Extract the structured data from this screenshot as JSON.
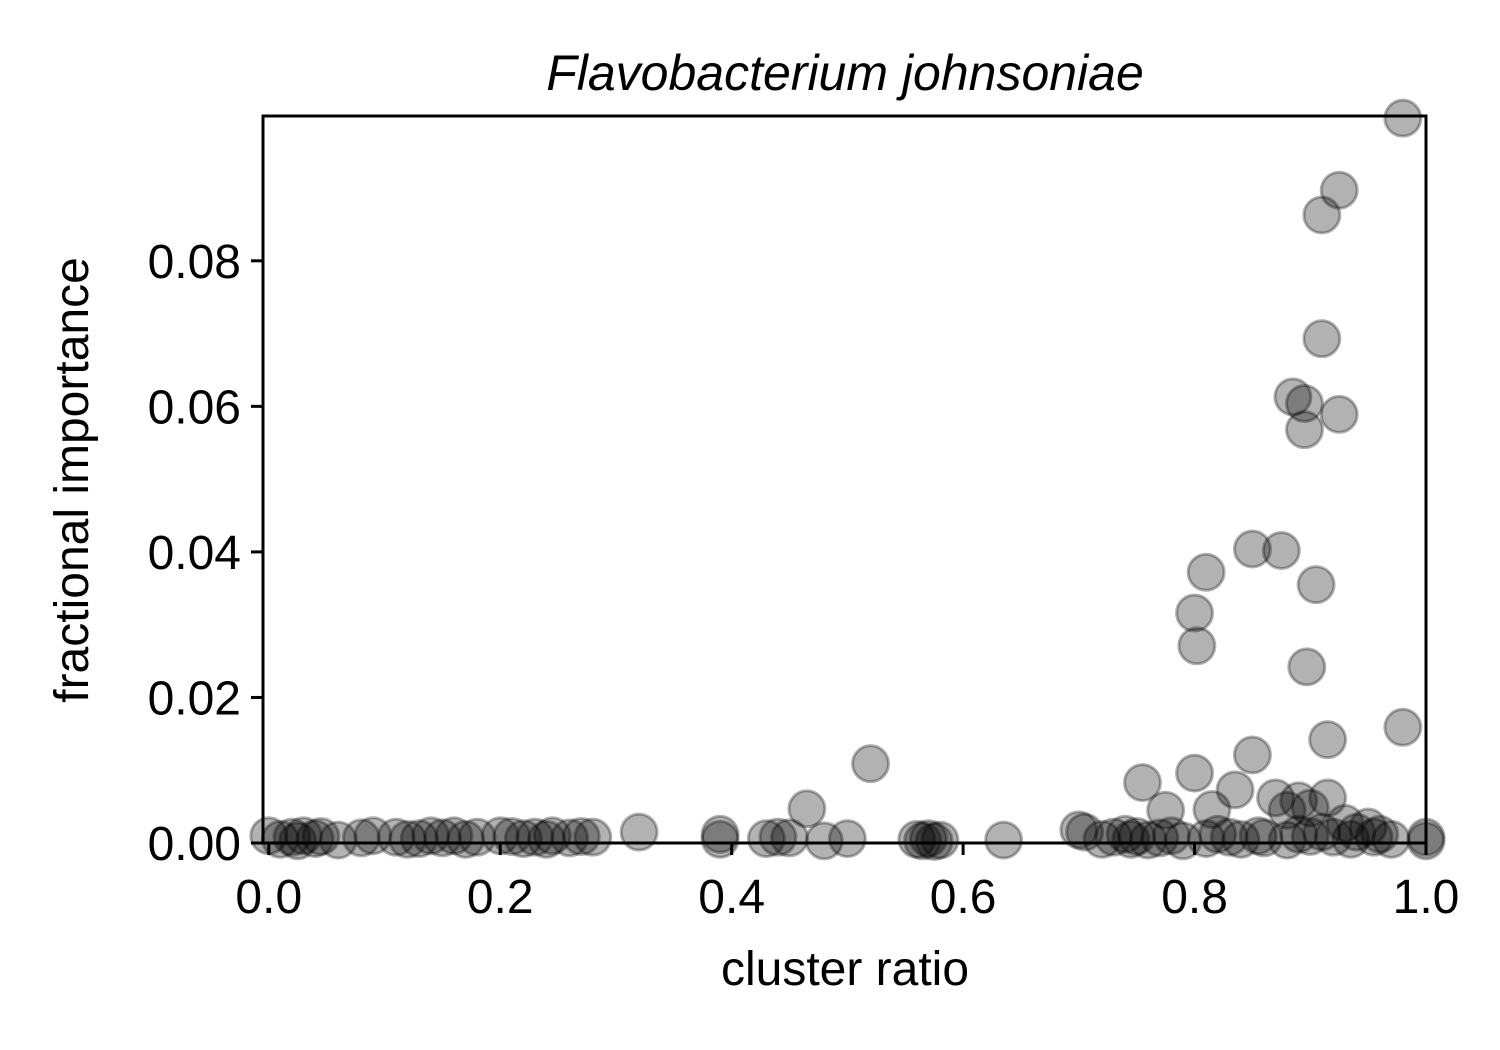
{
  "chart_data": {
    "type": "scatter",
    "title": "Flavobacterium johnsoniae",
    "xlabel": "cluster ratio",
    "ylabel": "fractional importance",
    "xlim": [
      -0.005,
      1.0
    ],
    "ylim": [
      0.0,
      0.0999
    ],
    "xticks": [
      0.0,
      0.2,
      0.4,
      0.6,
      0.8,
      1.0
    ],
    "xtick_labels": [
      "0.0",
      "0.2",
      "0.4",
      "0.6",
      "0.8",
      "1.0"
    ],
    "yticks": [
      0.0,
      0.02,
      0.04,
      0.06,
      0.08
    ],
    "ytick_labels": [
      "0.00",
      "0.02",
      "0.04",
      "0.06",
      "0.08"
    ],
    "grid": false,
    "marker_color": "#000000",
    "marker_alpha": 0.3,
    "points": [
      {
        "x": 0.0,
        "y": 0.001
      },
      {
        "x": 0.01,
        "y": 0.0005
      },
      {
        "x": 0.02,
        "y": 0.0008
      },
      {
        "x": 0.025,
        "y": 0.0003
      },
      {
        "x": 0.03,
        "y": 0.001
      },
      {
        "x": 0.04,
        "y": 0.0006
      },
      {
        "x": 0.045,
        "y": 0.0009
      },
      {
        "x": 0.06,
        "y": 0.0004
      },
      {
        "x": 0.08,
        "y": 0.0007
      },
      {
        "x": 0.09,
        "y": 0.001
      },
      {
        "x": 0.11,
        "y": 0.0008
      },
      {
        "x": 0.12,
        "y": 0.0005
      },
      {
        "x": 0.13,
        "y": 0.0006
      },
      {
        "x": 0.14,
        "y": 0.001
      },
      {
        "x": 0.15,
        "y": 0.0007
      },
      {
        "x": 0.16,
        "y": 0.001
      },
      {
        "x": 0.17,
        "y": 0.0005
      },
      {
        "x": 0.18,
        "y": 0.0008
      },
      {
        "x": 0.2,
        "y": 0.001
      },
      {
        "x": 0.21,
        "y": 0.0009
      },
      {
        "x": 0.22,
        "y": 0.0006
      },
      {
        "x": 0.23,
        "y": 0.0008
      },
      {
        "x": 0.24,
        "y": 0.0005
      },
      {
        "x": 0.245,
        "y": 0.001
      },
      {
        "x": 0.26,
        "y": 0.0007
      },
      {
        "x": 0.27,
        "y": 0.0009
      },
      {
        "x": 0.28,
        "y": 0.0008
      },
      {
        "x": 0.32,
        "y": 0.0015
      },
      {
        "x": 0.39,
        "y": 0.0005
      },
      {
        "x": 0.39,
        "y": 0.0012
      },
      {
        "x": 0.43,
        "y": 0.0006
      },
      {
        "x": 0.44,
        "y": 0.0008
      },
      {
        "x": 0.45,
        "y": 0.0007
      },
      {
        "x": 0.465,
        "y": 0.0047
      },
      {
        "x": 0.48,
        "y": 0.0003
      },
      {
        "x": 0.5,
        "y": 0.0006
      },
      {
        "x": 0.52,
        "y": 0.0109
      },
      {
        "x": 0.56,
        "y": 0.0005
      },
      {
        "x": 0.565,
        "y": 0.0003
      },
      {
        "x": 0.57,
        "y": 0.0006
      },
      {
        "x": 0.575,
        "y": 0.0002
      },
      {
        "x": 0.58,
        "y": 0.0004
      },
      {
        "x": 0.635,
        "y": 0.0004
      },
      {
        "x": 0.7,
        "y": 0.0018
      },
      {
        "x": 0.705,
        "y": 0.0015
      },
      {
        "x": 0.72,
        "y": 0.0005
      },
      {
        "x": 0.73,
        "y": 0.0008
      },
      {
        "x": 0.74,
        "y": 0.0012
      },
      {
        "x": 0.745,
        "y": 0.0005
      },
      {
        "x": 0.75,
        "y": 0.0009
      },
      {
        "x": 0.755,
        "y": 0.0083
      },
      {
        "x": 0.76,
        "y": 0.0004
      },
      {
        "x": 0.77,
        "y": 0.0007
      },
      {
        "x": 0.775,
        "y": 0.0045
      },
      {
        "x": 0.78,
        "y": 0.001
      },
      {
        "x": 0.79,
        "y": 0.0003
      },
      {
        "x": 0.8,
        "y": 0.0096
      },
      {
        "x": 0.8,
        "y": 0.0316
      },
      {
        "x": 0.802,
        "y": 0.0271
      },
      {
        "x": 0.81,
        "y": 0.0372
      },
      {
        "x": 0.81,
        "y": 0.0006
      },
      {
        "x": 0.815,
        "y": 0.0046
      },
      {
        "x": 0.82,
        "y": 0.0012
      },
      {
        "x": 0.83,
        "y": 0.0008
      },
      {
        "x": 0.835,
        "y": 0.0073
      },
      {
        "x": 0.84,
        "y": 0.0005
      },
      {
        "x": 0.85,
        "y": 0.0404
      },
      {
        "x": 0.85,
        "y": 0.0121
      },
      {
        "x": 0.855,
        "y": 0.001
      },
      {
        "x": 0.86,
        "y": 0.0007
      },
      {
        "x": 0.87,
        "y": 0.0062
      },
      {
        "x": 0.875,
        "y": 0.0402
      },
      {
        "x": 0.88,
        "y": 0.0004
      },
      {
        "x": 0.88,
        "y": 0.0045
      },
      {
        "x": 0.885,
        "y": 0.0613
      },
      {
        "x": 0.89,
        "y": 0.0012
      },
      {
        "x": 0.89,
        "y": 0.0058
      },
      {
        "x": 0.895,
        "y": 0.0568
      },
      {
        "x": 0.895,
        "y": 0.0604
      },
      {
        "x": 0.897,
        "y": 0.0242
      },
      {
        "x": 0.9,
        "y": 0.0009
      },
      {
        "x": 0.9,
        "y": 0.0048
      },
      {
        "x": 0.905,
        "y": 0.0355
      },
      {
        "x": 0.91,
        "y": 0.0693
      },
      {
        "x": 0.91,
        "y": 0.0863
      },
      {
        "x": 0.91,
        "y": 0.0015
      },
      {
        "x": 0.915,
        "y": 0.0142
      },
      {
        "x": 0.915,
        "y": 0.0062
      },
      {
        "x": 0.92,
        "y": 0.0008
      },
      {
        "x": 0.925,
        "y": 0.0589
      },
      {
        "x": 0.925,
        "y": 0.0897
      },
      {
        "x": 0.93,
        "y": 0.0027
      },
      {
        "x": 0.935,
        "y": 0.0005
      },
      {
        "x": 0.94,
        "y": 0.0015
      },
      {
        "x": 0.95,
        "y": 0.0022
      },
      {
        "x": 0.955,
        "y": 0.0008
      },
      {
        "x": 0.96,
        "y": 0.0012
      },
      {
        "x": 0.97,
        "y": 0.0005
      },
      {
        "x": 0.98,
        "y": 0.0159
      },
      {
        "x": 0.98,
        "y": 0.0996
      },
      {
        "x": 1.0,
        "y": 0.0003
      },
      {
        "x": 1.0,
        "y": 0.0008
      }
    ]
  }
}
